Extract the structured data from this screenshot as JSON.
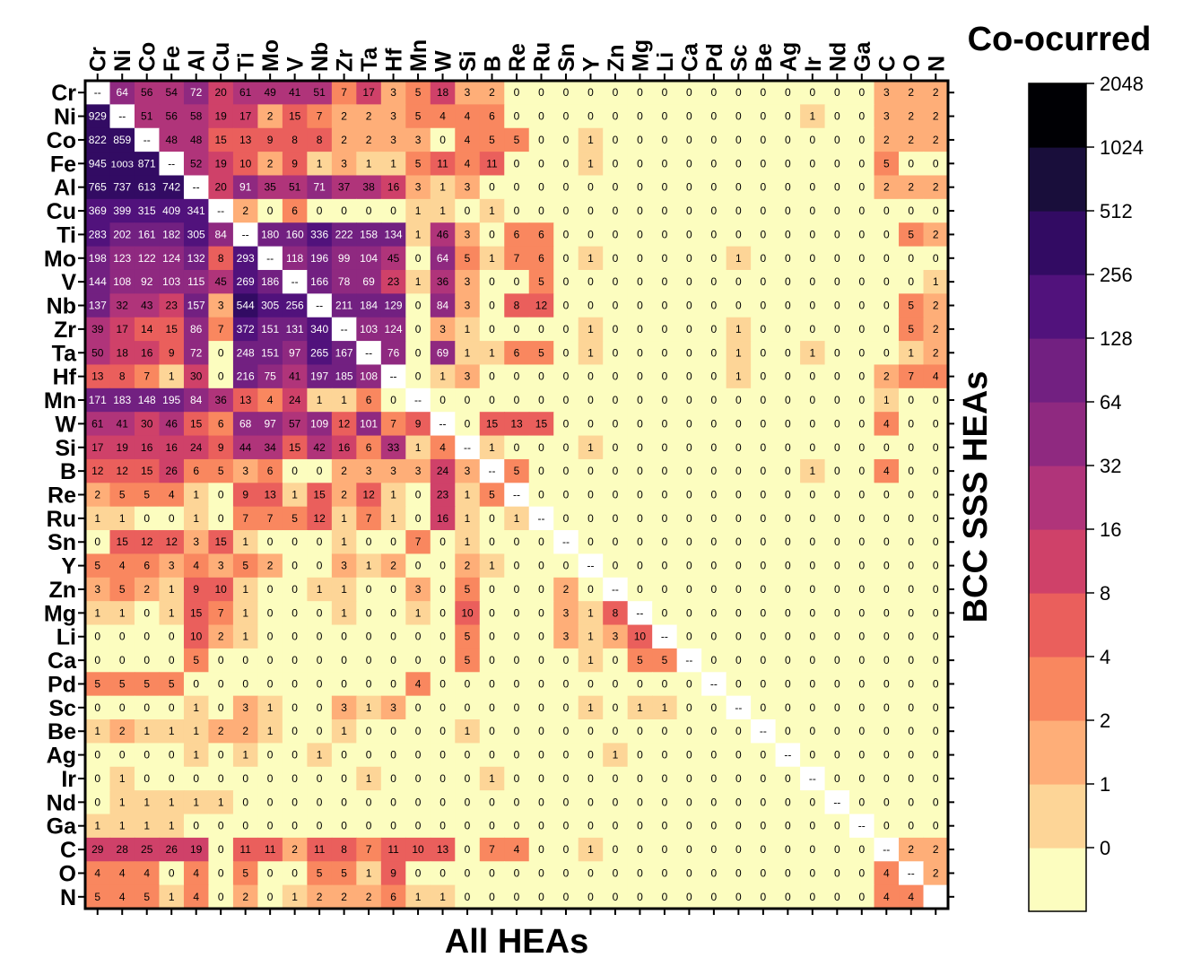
{
  "chart_data": {
    "type": "heatmap",
    "title": "Co-ocurred",
    "xlabel": "All HEAs",
    "ylabel": "BCC SSS HEAs",
    "elements": [
      "Cr",
      "Ni",
      "Co",
      "Fe",
      "Al",
      "Cu",
      "Ti",
      "Mo",
      "V",
      "Nb",
      "Zr",
      "Ta",
      "Hf",
      "Mn",
      "W",
      "Si",
      "B",
      "Re",
      "Ru",
      "Sn",
      "Y",
      "Zn",
      "Mg",
      "Li",
      "Ca",
      "Pd",
      "Sc",
      "Be",
      "Ag",
      "Ir",
      "Nd",
      "Ga",
      "C",
      "O",
      "N"
    ],
    "diagonal_label": "--",
    "colorbar": {
      "ticks": [
        "2048",
        "1024",
        "512",
        "256",
        "128",
        "64",
        "32",
        "16",
        "8",
        "4",
        "2",
        "1",
        "0"
      ],
      "bins": [
        0,
        1,
        2,
        4,
        8,
        16,
        32,
        64,
        128,
        256,
        512,
        1024,
        2048
      ],
      "colors": [
        "#fcfdbf",
        "#fdd597",
        "#feae78",
        "#f9875f",
        "#ea5f5c",
        "#cf4169",
        "#b0347a",
        "#8f2980",
        "#722081",
        "#51127c",
        "#320b63",
        "#190e3b",
        "#000004"
      ]
    },
    "matrix": [
      [
        "--",
        64,
        56,
        54,
        72,
        20,
        61,
        49,
        41,
        51,
        7,
        17,
        3,
        5,
        18,
        3,
        2,
        0,
        0,
        0,
        0,
        0,
        0,
        0,
        0,
        0,
        0,
        0,
        0,
        0,
        0,
        0,
        3,
        2,
        2
      ],
      [
        929,
        "--",
        51,
        56,
        58,
        19,
        17,
        2,
        15,
        7,
        2,
        2,
        3,
        5,
        4,
        4,
        6,
        0,
        0,
        0,
        0,
        0,
        0,
        0,
        0,
        0,
        0,
        0,
        0,
        1,
        0,
        0,
        3,
        2,
        2
      ],
      [
        822,
        859,
        "--",
        48,
        48,
        15,
        13,
        9,
        8,
        8,
        2,
        2,
        3,
        3,
        0,
        4,
        5,
        5,
        0,
        0,
        1,
        0,
        0,
        0,
        0,
        0,
        0,
        0,
        0,
        0,
        0,
        0,
        2,
        2,
        2
      ],
      [
        945,
        1003,
        871,
        "--",
        52,
        19,
        10,
        2,
        9,
        1,
        3,
        1,
        1,
        5,
        11,
        4,
        11,
        0,
        0,
        0,
        1,
        0,
        0,
        0,
        0,
        0,
        0,
        0,
        0,
        0,
        0,
        0,
        5,
        0,
        0
      ],
      [
        765,
        737,
        613,
        742,
        "--",
        20,
        91,
        35,
        51,
        71,
        37,
        38,
        16,
        3,
        1,
        3,
        0,
        0,
        0,
        0,
        0,
        0,
        0,
        0,
        0,
        0,
        0,
        0,
        0,
        0,
        0,
        0,
        2,
        2,
        2
      ],
      [
        369,
        399,
        315,
        409,
        341,
        "--",
        2,
        0,
        6,
        0,
        0,
        0,
        0,
        1,
        1,
        0,
        1,
        0,
        0,
        0,
        0,
        0,
        0,
        0,
        0,
        0,
        0,
        0,
        0,
        0,
        0,
        0,
        0,
        0,
        0
      ],
      [
        283,
        202,
        161,
        182,
        305,
        84,
        "--",
        180,
        160,
        336,
        222,
        158,
        134,
        1,
        46,
        3,
        0,
        6,
        6,
        0,
        0,
        0,
        0,
        0,
        0,
        0,
        0,
        0,
        0,
        0,
        0,
        0,
        0,
        5,
        2
      ],
      [
        198,
        123,
        122,
        124,
        132,
        8,
        293,
        "--",
        118,
        196,
        99,
        104,
        45,
        0,
        64,
        5,
        1,
        7,
        6,
        0,
        1,
        0,
        0,
        0,
        0,
        0,
        1,
        0,
        0,
        0,
        0,
        0,
        0,
        0,
        0
      ],
      [
        144,
        108,
        92,
        103,
        115,
        45,
        269,
        186,
        "--",
        166,
        78,
        69,
        23,
        1,
        36,
        3,
        0,
        0,
        5,
        0,
        0,
        0,
        0,
        0,
        0,
        0,
        0,
        0,
        0,
        0,
        0,
        0,
        0,
        0,
        1
      ],
      [
        137,
        32,
        43,
        23,
        157,
        3,
        544,
        305,
        256,
        "--",
        211,
        184,
        129,
        0,
        84,
        3,
        0,
        8,
        12,
        0,
        0,
        0,
        0,
        0,
        0,
        0,
        0,
        0,
        0,
        0,
        0,
        0,
        0,
        5,
        2
      ],
      [
        39,
        17,
        14,
        15,
        86,
        7,
        372,
        151,
        131,
        340,
        "--",
        103,
        124,
        0,
        3,
        1,
        0,
        0,
        0,
        0,
        1,
        0,
        0,
        0,
        0,
        0,
        1,
        0,
        0,
        0,
        0,
        0,
        0,
        5,
        2
      ],
      [
        50,
        18,
        16,
        9,
        72,
        0,
        248,
        151,
        97,
        265,
        167,
        "--",
        76,
        0,
        69,
        1,
        1,
        6,
        5,
        0,
        1,
        0,
        0,
        0,
        0,
        0,
        1,
        0,
        0,
        1,
        0,
        0,
        0,
        1,
        2
      ],
      [
        13,
        8,
        7,
        1,
        30,
        0,
        216,
        75,
        41,
        197,
        185,
        108,
        "--",
        0,
        1,
        3,
        0,
        0,
        0,
        0,
        0,
        0,
        0,
        0,
        0,
        0,
        1,
        0,
        0,
        0,
        0,
        0,
        2,
        7,
        4
      ],
      [
        171,
        183,
        148,
        195,
        84,
        36,
        13,
        4,
        24,
        1,
        1,
        6,
        0,
        "--",
        0,
        0,
        0,
        0,
        0,
        0,
        0,
        0,
        0,
        0,
        0,
        0,
        0,
        0,
        0,
        0,
        0,
        0,
        1,
        0,
        0
      ],
      [
        61,
        41,
        30,
        46,
        15,
        6,
        68,
        97,
        57,
        109,
        12,
        101,
        7,
        9,
        "--",
        0,
        15,
        13,
        15,
        0,
        0,
        0,
        0,
        0,
        0,
        0,
        0,
        0,
        0,
        0,
        0,
        0,
        4,
        0,
        0
      ],
      [
        17,
        19,
        16,
        16,
        24,
        9,
        44,
        34,
        15,
        42,
        16,
        6,
        33,
        1,
        4,
        "--",
        1,
        0,
        0,
        0,
        1,
        0,
        0,
        0,
        0,
        0,
        0,
        0,
        0,
        0,
        0,
        0,
        0,
        0,
        0
      ],
      [
        12,
        12,
        15,
        26,
        6,
        5,
        3,
        6,
        0,
        0,
        2,
        3,
        3,
        3,
        24,
        3,
        "--",
        5,
        0,
        0,
        0,
        0,
        0,
        0,
        0,
        0,
        0,
        0,
        0,
        1,
        0,
        0,
        4,
        0,
        0
      ],
      [
        2,
        5,
        5,
        4,
        1,
        0,
        9,
        13,
        1,
        15,
        2,
        12,
        1,
        0,
        23,
        1,
        5,
        "--",
        0,
        0,
        0,
        0,
        0,
        0,
        0,
        0,
        0,
        0,
        0,
        0,
        0,
        0,
        0,
        0,
        0
      ],
      [
        1,
        1,
        0,
        0,
        1,
        0,
        7,
        7,
        5,
        12,
        1,
        7,
        1,
        0,
        16,
        1,
        0,
        1,
        "--",
        0,
        0,
        0,
        0,
        0,
        0,
        0,
        0,
        0,
        0,
        0,
        0,
        0,
        0,
        0,
        0
      ],
      [
        0,
        15,
        12,
        12,
        3,
        15,
        1,
        0,
        0,
        0,
        1,
        0,
        0,
        7,
        0,
        1,
        0,
        0,
        0,
        "--",
        0,
        0,
        0,
        0,
        0,
        0,
        0,
        0,
        0,
        0,
        0,
        0,
        0,
        0,
        0
      ],
      [
        5,
        4,
        6,
        3,
        4,
        3,
        5,
        2,
        0,
        0,
        3,
        1,
        2,
        0,
        0,
        2,
        1,
        0,
        0,
        0,
        "--",
        0,
        0,
        0,
        0,
        0,
        0,
        0,
        0,
        0,
        0,
        0,
        0,
        0,
        0
      ],
      [
        3,
        5,
        2,
        1,
        9,
        10,
        1,
        0,
        0,
        1,
        1,
        0,
        0,
        3,
        0,
        5,
        0,
        0,
        0,
        2,
        0,
        "--",
        0,
        0,
        0,
        0,
        0,
        0,
        0,
        0,
        0,
        0,
        0,
        0,
        0
      ],
      [
        1,
        1,
        0,
        1,
        15,
        7,
        1,
        0,
        0,
        0,
        1,
        0,
        0,
        1,
        0,
        10,
        0,
        0,
        0,
        3,
        1,
        8,
        "--",
        0,
        0,
        0,
        0,
        0,
        0,
        0,
        0,
        0,
        0,
        0,
        0
      ],
      [
        0,
        0,
        0,
        0,
        10,
        2,
        1,
        0,
        0,
        0,
        0,
        0,
        0,
        0,
        0,
        5,
        0,
        0,
        0,
        3,
        1,
        3,
        10,
        "--",
        0,
        0,
        0,
        0,
        0,
        0,
        0,
        0,
        0,
        0,
        0
      ],
      [
        0,
        0,
        0,
        0,
        5,
        0,
        0,
        0,
        0,
        0,
        0,
        0,
        0,
        0,
        0,
        5,
        0,
        0,
        0,
        0,
        1,
        0,
        5,
        5,
        "--",
        0,
        0,
        0,
        0,
        0,
        0,
        0,
        0,
        0,
        0
      ],
      [
        5,
        5,
        5,
        5,
        0,
        0,
        0,
        0,
        0,
        0,
        0,
        0,
        0,
        4,
        0,
        0,
        0,
        0,
        0,
        0,
        0,
        0,
        0,
        0,
        0,
        "--",
        0,
        0,
        0,
        0,
        0,
        0,
        0,
        0,
        0
      ],
      [
        0,
        0,
        0,
        0,
        1,
        0,
        3,
        1,
        0,
        0,
        3,
        1,
        3,
        0,
        0,
        0,
        0,
        0,
        0,
        0,
        1,
        0,
        1,
        1,
        0,
        0,
        "--",
        0,
        0,
        0,
        0,
        0,
        0,
        0,
        0
      ],
      [
        1,
        2,
        1,
        1,
        1,
        2,
        2,
        1,
        0,
        0,
        1,
        0,
        0,
        0,
        0,
        1,
        0,
        0,
        0,
        0,
        0,
        0,
        0,
        0,
        0,
        0,
        0,
        "--",
        0,
        0,
        0,
        0,
        0,
        0,
        0
      ],
      [
        0,
        0,
        0,
        0,
        1,
        0,
        1,
        0,
        0,
        1,
        0,
        0,
        0,
        0,
        0,
        0,
        0,
        0,
        0,
        0,
        0,
        1,
        0,
        0,
        0,
        0,
        0,
        0,
        "--",
        0,
        0,
        0,
        0,
        0,
        0
      ],
      [
        0,
        1,
        0,
        0,
        0,
        0,
        0,
        0,
        0,
        0,
        0,
        1,
        0,
        0,
        0,
        0,
        1,
        0,
        0,
        0,
        0,
        0,
        0,
        0,
        0,
        0,
        0,
        0,
        0,
        "--",
        0,
        0,
        0,
        0,
        0
      ],
      [
        0,
        1,
        1,
        1,
        1,
        1,
        0,
        0,
        0,
        0,
        0,
        0,
        0,
        0,
        0,
        0,
        0,
        0,
        0,
        0,
        0,
        0,
        0,
        0,
        0,
        0,
        0,
        0,
        0,
        0,
        "--",
        0,
        0,
        0,
        0
      ],
      [
        1,
        1,
        1,
        1,
        0,
        0,
        0,
        0,
        0,
        0,
        0,
        0,
        0,
        0,
        0,
        0,
        0,
        0,
        0,
        0,
        0,
        0,
        0,
        0,
        0,
        0,
        0,
        0,
        0,
        0,
        0,
        "--",
        0,
        0,
        0
      ],
      [
        29,
        28,
        25,
        26,
        19,
        0,
        11,
        11,
        2,
        11,
        8,
        7,
        11,
        10,
        13,
        0,
        7,
        4,
        0,
        0,
        1,
        0,
        0,
        0,
        0,
        0,
        0,
        0,
        0,
        0,
        0,
        0,
        "--",
        2,
        2
      ],
      [
        4,
        4,
        4,
        0,
        4,
        0,
        5,
        0,
        0,
        5,
        5,
        1,
        9,
        0,
        0,
        0,
        0,
        0,
        0,
        0,
        0,
        0,
        0,
        0,
        0,
        0,
        0,
        0,
        0,
        0,
        0,
        0,
        4,
        "--",
        2
      ],
      [
        5,
        4,
        5,
        1,
        4,
        0,
        2,
        0,
        1,
        2,
        2,
        2,
        6,
        1,
        1,
        0,
        0,
        0,
        0,
        0,
        0,
        0,
        0,
        0,
        0,
        0,
        0,
        0,
        0,
        0,
        0,
        0,
        4,
        4,
        ""
      ]
    ]
  }
}
